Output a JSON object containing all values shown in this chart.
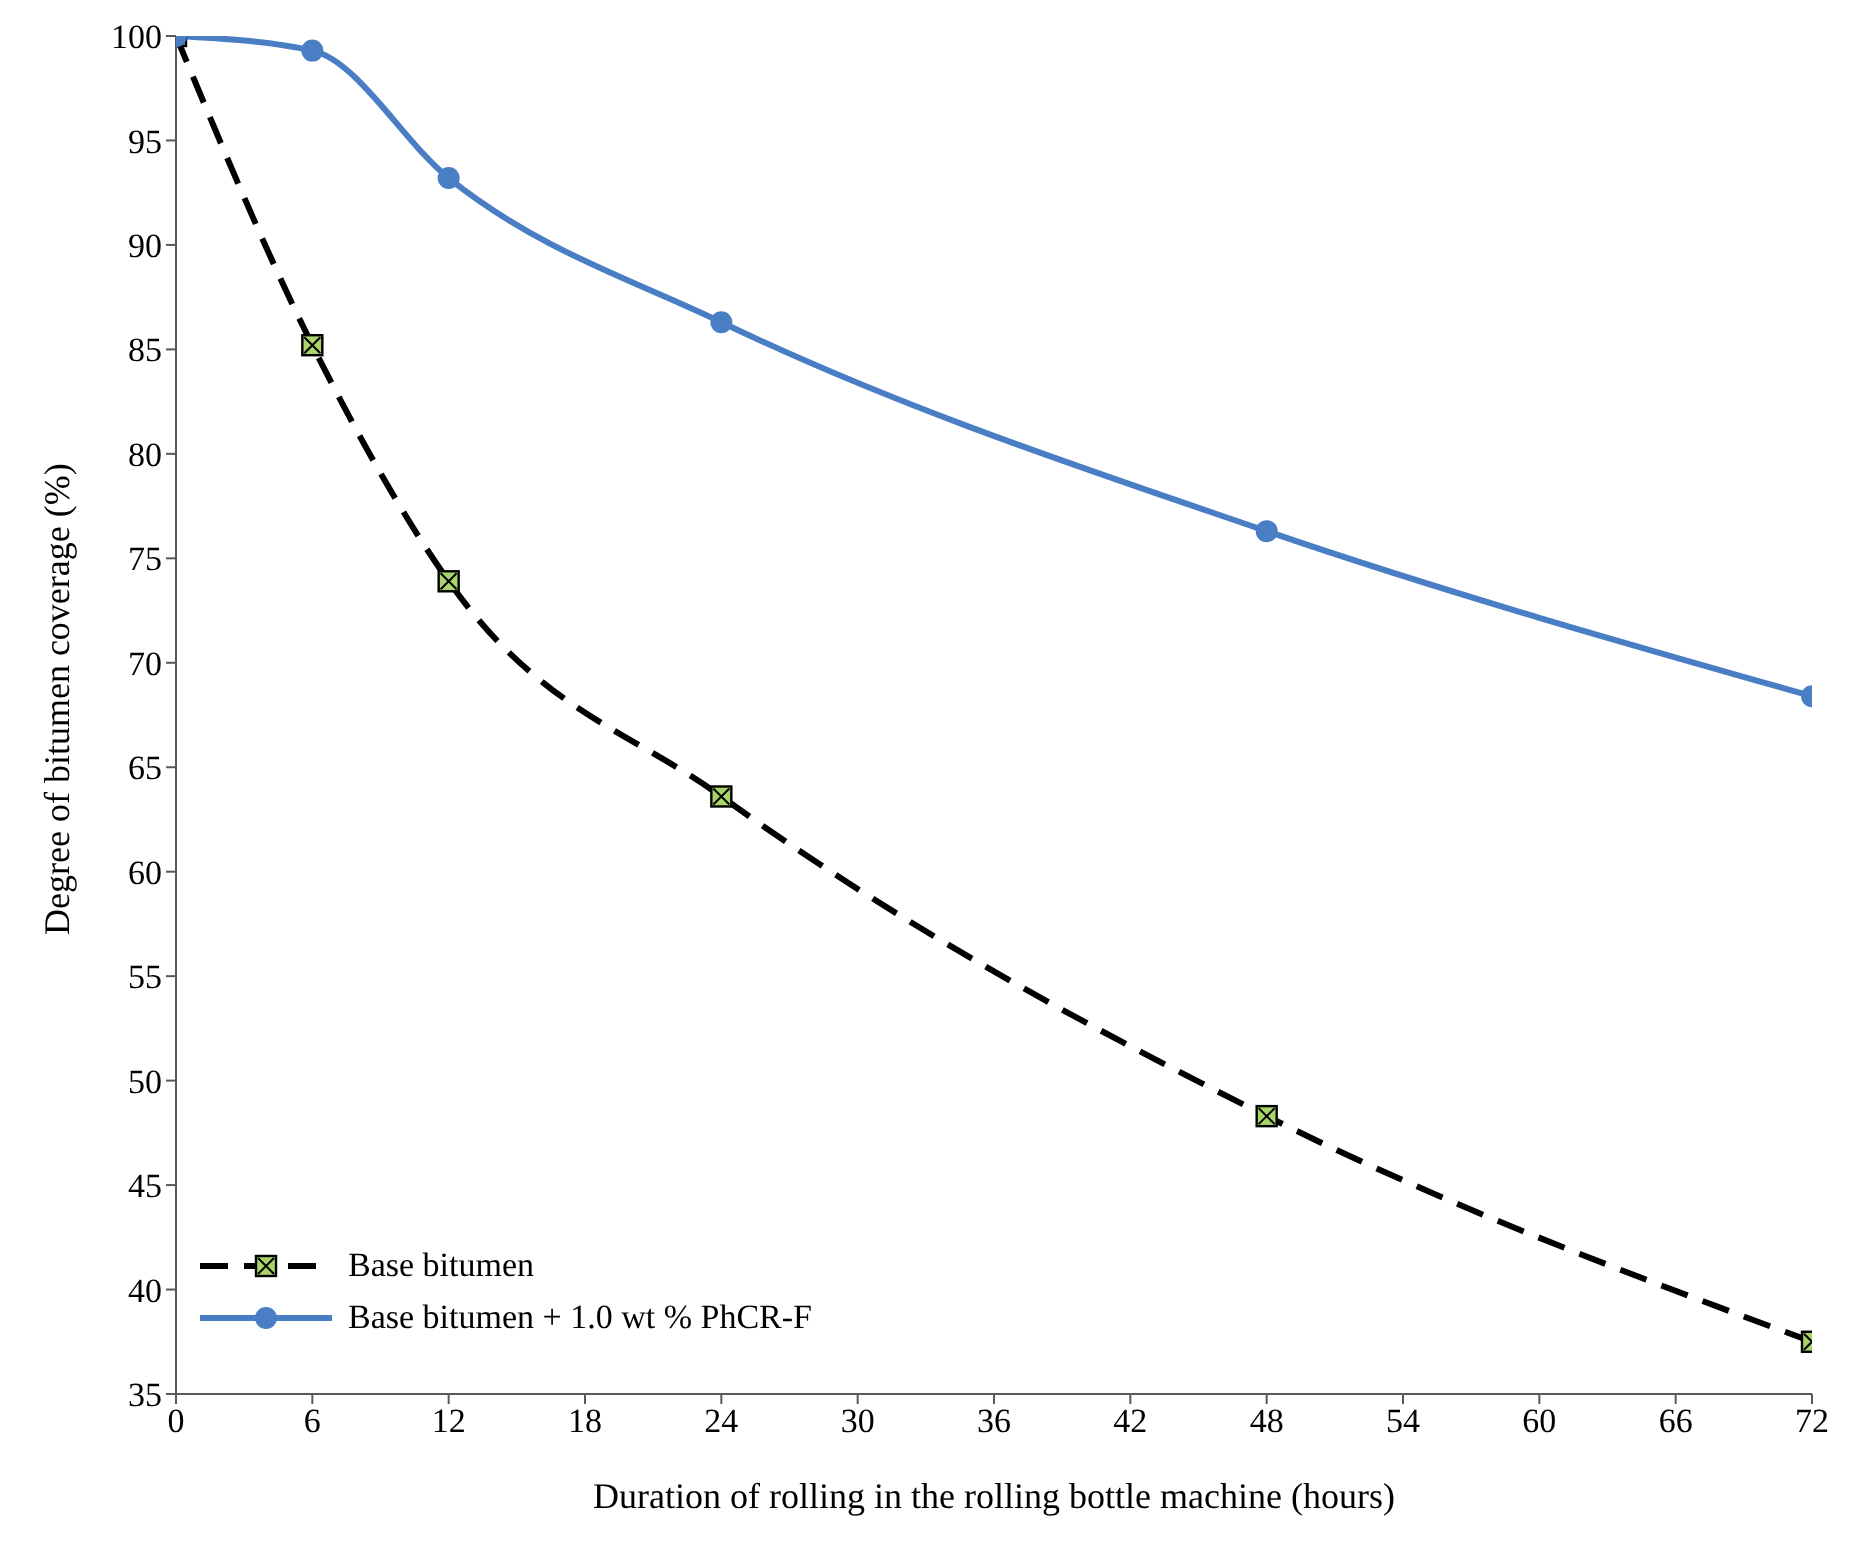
{
  "chart_data": {
    "type": "line",
    "xlabel": "Duration of rolling  in the rolling bottle machine  (hours)",
    "ylabel": "Degree of  bitumen coverage (%)",
    "x": [
      0,
      6,
      12,
      24,
      48,
      72
    ],
    "series": [
      {
        "name": "Base bitumen",
        "color": "#000000",
        "values": [
          100,
          85.2,
          73.9,
          63.6,
          48.3,
          37.5
        ],
        "marker": "square",
        "line_style": "dashed"
      },
      {
        "name": "Base bitumen + 1.0 wt % PhCR-F",
        "color": "#4a7ec4",
        "values": [
          100,
          99.3,
          93.2,
          86.3,
          76.3,
          68.4
        ],
        "marker": "circle",
        "line_style": "solid"
      }
    ],
    "xlim": [
      0,
      72
    ],
    "xticks": [
      0,
      6,
      12,
      18,
      24,
      30,
      36,
      42,
      48,
      54,
      60,
      66,
      72
    ],
    "ylim": [
      35,
      100
    ],
    "yticks": [
      35,
      40,
      45,
      50,
      55,
      60,
      65,
      70,
      75,
      80,
      85,
      90,
      95,
      100
    ],
    "grid": false,
    "legend": "bottom left"
  }
}
